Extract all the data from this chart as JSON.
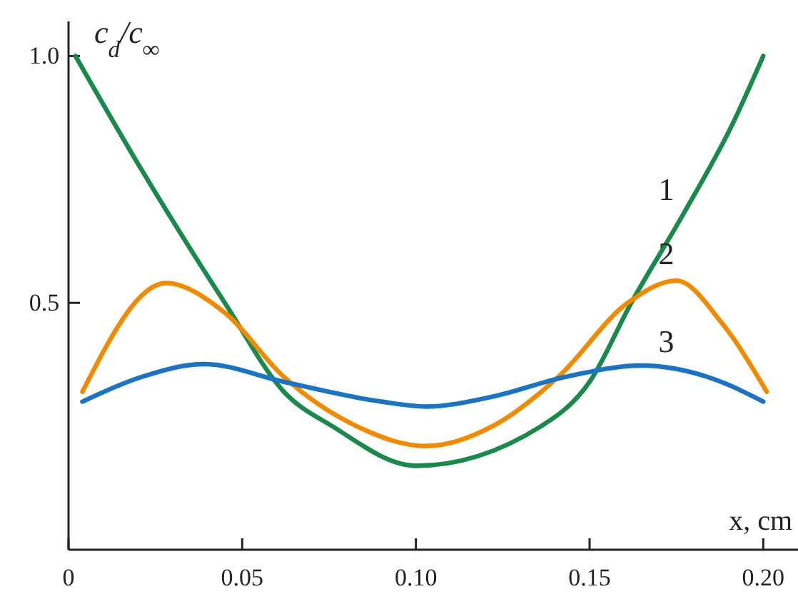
{
  "chart_data": {
    "type": "line",
    "xlabel": "x, cm",
    "ylabel": "c$_{d}$/c$_{∞}$",
    "xlim": [
      0,
      0.21
    ],
    "ylim": [
      0,
      1.07
    ],
    "xticks": [
      0,
      0.05,
      {
        "value": 0.1,
        "label": "0.10"
      },
      0.15,
      {
        "value": 0.2,
        "label": "0.20"
      }
    ],
    "yticks": [
      0.5,
      {
        "value": 1,
        "label": "1.0"
      }
    ],
    "grid": false,
    "legend": false,
    "marker": "none",
    "line_style": "solid",
    "series": [
      {
        "name": "1",
        "color": "#1a8a4a",
        "x": [
          0.002,
          0.021,
          0.045,
          0.062,
          0.076,
          0.1,
          0.136,
          0.15,
          0.162,
          0.177,
          0.191,
          0.2
        ],
        "values": [
          1.0,
          0.77,
          0.5,
          0.32,
          0.25,
          0.17,
          0.25,
          0.34,
          0.5,
          0.68,
          0.86,
          1.0
        ]
      },
      {
        "name": "2",
        "color": "#f28a00",
        "x": [
          0.004,
          0.028,
          0.045,
          0.062,
          0.083,
          0.103,
          0.122,
          0.141,
          0.161,
          0.175,
          0.188,
          0.201
        ],
        "values": [
          0.32,
          0.54,
          0.48,
          0.35,
          0.25,
          0.21,
          0.25,
          0.35,
          0.5,
          0.545,
          0.46,
          0.32
        ]
      },
      {
        "name": "3",
        "color": "#1a73c4",
        "x": [
          0.004,
          0.021,
          0.039,
          0.062,
          0.09,
          0.103,
          0.122,
          0.143,
          0.165,
          0.184,
          0.2
        ],
        "values": [
          0.3,
          0.35,
          0.376,
          0.34,
          0.3,
          0.29,
          0.31,
          0.35,
          0.373,
          0.35,
          0.3
        ]
      }
    ]
  }
}
